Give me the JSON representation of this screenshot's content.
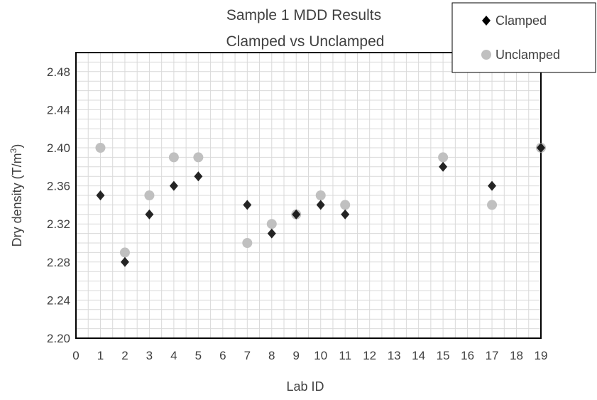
{
  "chart_data": {
    "type": "scatter",
    "title": "Sample 1 MDD Results",
    "subtitle": "Clamped vs Unclamped",
    "xlabel": "Lab ID",
    "ylabel": "Dry density (T/m",
    "ylabel_sup": "3",
    "ylabel_close": ")",
    "xlim": [
      0,
      19
    ],
    "ylim": [
      2.2,
      2.5
    ],
    "xticks": [
      "0",
      "1",
      "2",
      "3",
      "4",
      "5",
      "6",
      "7",
      "8",
      "9",
      "10",
      "11",
      "12",
      "13",
      "14",
      "15",
      "16",
      "17",
      "18",
      "19"
    ],
    "yticks": [
      "2.20",
      "2.24",
      "2.28",
      "2.32",
      "2.36",
      "2.40",
      "2.44",
      "2.48"
    ],
    "grid": true,
    "legend_position": "top-right",
    "series": [
      {
        "name": "Clamped",
        "marker": "diamond",
        "color": "#000000",
        "points": [
          {
            "x": 1,
            "y": 2.35
          },
          {
            "x": 2,
            "y": 2.28
          },
          {
            "x": 3,
            "y": 2.33
          },
          {
            "x": 4,
            "y": 2.36
          },
          {
            "x": 5,
            "y": 2.37
          },
          {
            "x": 7,
            "y": 2.34
          },
          {
            "x": 8,
            "y": 2.31
          },
          {
            "x": 9,
            "y": 2.33
          },
          {
            "x": 10,
            "y": 2.34
          },
          {
            "x": 11,
            "y": 2.33
          },
          {
            "x": 15,
            "y": 2.38
          },
          {
            "x": 17,
            "y": 2.36
          },
          {
            "x": 19,
            "y": 2.4
          }
        ]
      },
      {
        "name": "Unclamped",
        "marker": "circle",
        "color": "#c0c0c0",
        "points": [
          {
            "x": 1,
            "y": 2.4
          },
          {
            "x": 2,
            "y": 2.29
          },
          {
            "x": 3,
            "y": 2.35
          },
          {
            "x": 4,
            "y": 2.39
          },
          {
            "x": 5,
            "y": 2.39
          },
          {
            "x": 7,
            "y": 2.3
          },
          {
            "x": 8,
            "y": 2.32
          },
          {
            "x": 9,
            "y": 2.33
          },
          {
            "x": 10,
            "y": 2.35
          },
          {
            "x": 11,
            "y": 2.34
          },
          {
            "x": 15,
            "y": 2.39
          },
          {
            "x": 17,
            "y": 2.34
          },
          {
            "x": 19,
            "y": 2.4
          }
        ]
      }
    ]
  }
}
